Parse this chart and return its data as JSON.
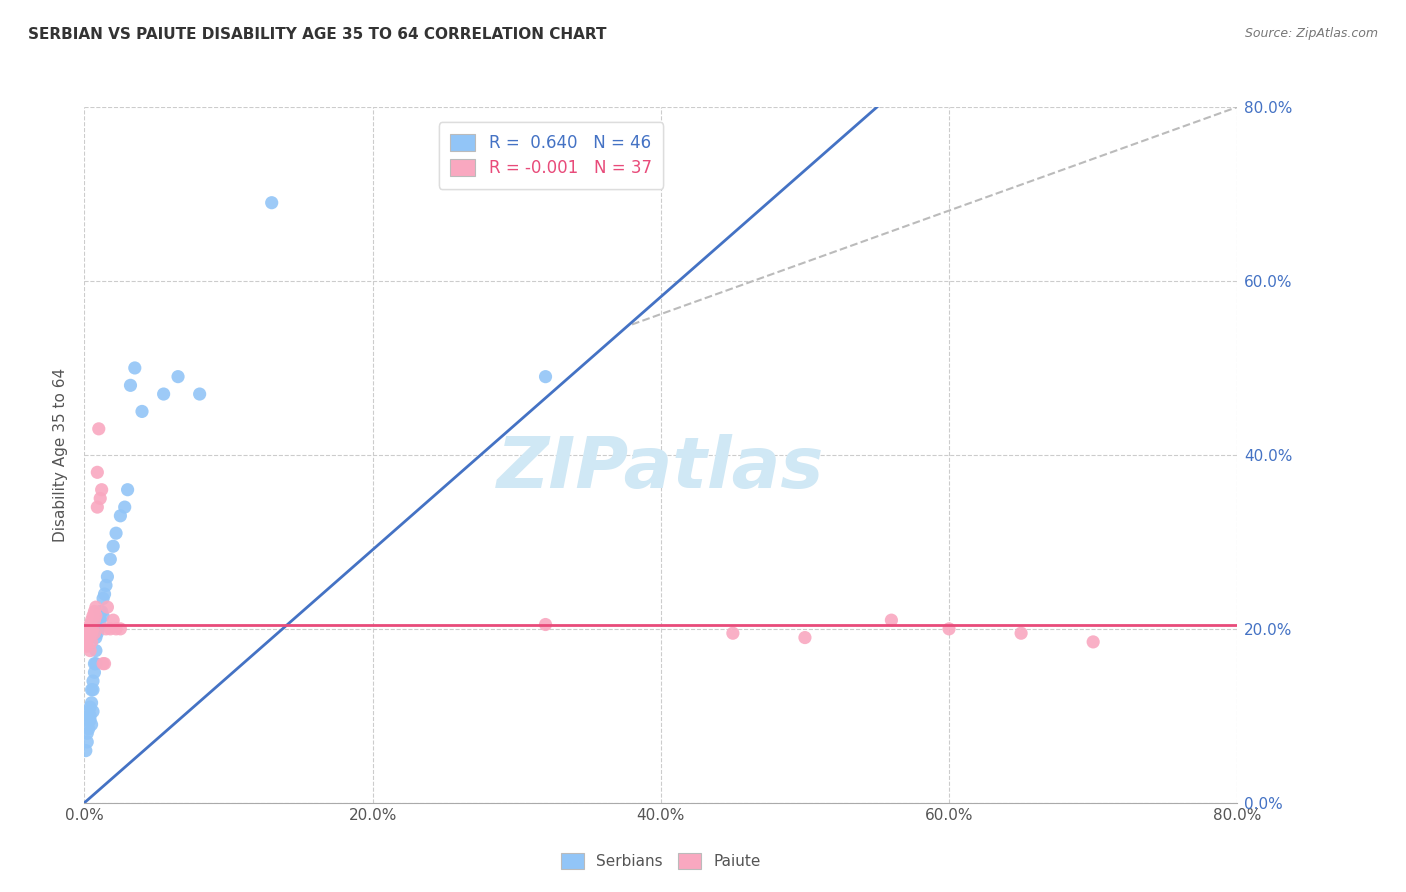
{
  "title": "SERBIAN VS PAIUTE DISABILITY AGE 35 TO 64 CORRELATION CHART",
  "source": "Source: ZipAtlas.com",
  "ylabel": "Disability Age 35 to 64",
  "legend_labels": [
    "Serbians",
    "Paiute"
  ],
  "serbian_R": 0.64,
  "serbian_N": 46,
  "paiute_R": -0.001,
  "paiute_N": 37,
  "serbian_color": "#92C5F7",
  "paiute_color": "#F9A8C0",
  "serbian_line_color": "#4472C4",
  "paiute_line_color": "#E84B7A",
  "regression_line_dashed_color": "#BBBBBB",
  "background_color": "#FFFFFF",
  "watermark_color": "#D0E8F5",
  "xlim": [
    0.0,
    0.8
  ],
  "ylim": [
    0.0,
    0.8
  ],
  "serbian_scatter_x": [
    0.001,
    0.002,
    0.002,
    0.003,
    0.003,
    0.003,
    0.004,
    0.004,
    0.004,
    0.005,
    0.005,
    0.005,
    0.006,
    0.006,
    0.006,
    0.007,
    0.007,
    0.008,
    0.008,
    0.008,
    0.009,
    0.009,
    0.01,
    0.01,
    0.011,
    0.011,
    0.012,
    0.013,
    0.013,
    0.014,
    0.015,
    0.016,
    0.018,
    0.02,
    0.022,
    0.025,
    0.028,
    0.03,
    0.032,
    0.035,
    0.04,
    0.055,
    0.065,
    0.08,
    0.13,
    0.32
  ],
  "serbian_scatter_y": [
    0.06,
    0.07,
    0.08,
    0.095,
    0.105,
    0.085,
    0.1,
    0.11,
    0.095,
    0.115,
    0.13,
    0.09,
    0.14,
    0.13,
    0.105,
    0.15,
    0.16,
    0.175,
    0.19,
    0.16,
    0.195,
    0.2,
    0.2,
    0.205,
    0.21,
    0.22,
    0.22,
    0.235,
    0.215,
    0.24,
    0.25,
    0.26,
    0.28,
    0.295,
    0.31,
    0.33,
    0.34,
    0.36,
    0.48,
    0.5,
    0.45,
    0.47,
    0.49,
    0.47,
    0.69,
    0.49
  ],
  "paiute_scatter_x": [
    0.001,
    0.002,
    0.002,
    0.003,
    0.003,
    0.004,
    0.004,
    0.005,
    0.005,
    0.005,
    0.006,
    0.006,
    0.007,
    0.007,
    0.007,
    0.008,
    0.008,
    0.009,
    0.009,
    0.01,
    0.011,
    0.012,
    0.013,
    0.014,
    0.015,
    0.016,
    0.018,
    0.02,
    0.022,
    0.025,
    0.32,
    0.45,
    0.5,
    0.56,
    0.6,
    0.65,
    0.7
  ],
  "paiute_scatter_y": [
    0.185,
    0.195,
    0.18,
    0.2,
    0.19,
    0.205,
    0.175,
    0.21,
    0.195,
    0.185,
    0.215,
    0.2,
    0.22,
    0.195,
    0.21,
    0.225,
    0.215,
    0.34,
    0.38,
    0.43,
    0.35,
    0.36,
    0.16,
    0.16,
    0.2,
    0.225,
    0.2,
    0.21,
    0.2,
    0.2,
    0.205,
    0.195,
    0.19,
    0.21,
    0.2,
    0.195,
    0.185
  ],
  "serbian_line_x": [
    0.0,
    0.55
  ],
  "serbian_line_y": [
    0.0,
    0.8
  ],
  "paiute_line_x": [
    0.0,
    0.8
  ],
  "paiute_line_y": [
    0.205,
    0.205
  ],
  "diag_line_x": [
    0.38,
    0.8
  ],
  "diag_line_y": [
    0.55,
    0.8
  ]
}
